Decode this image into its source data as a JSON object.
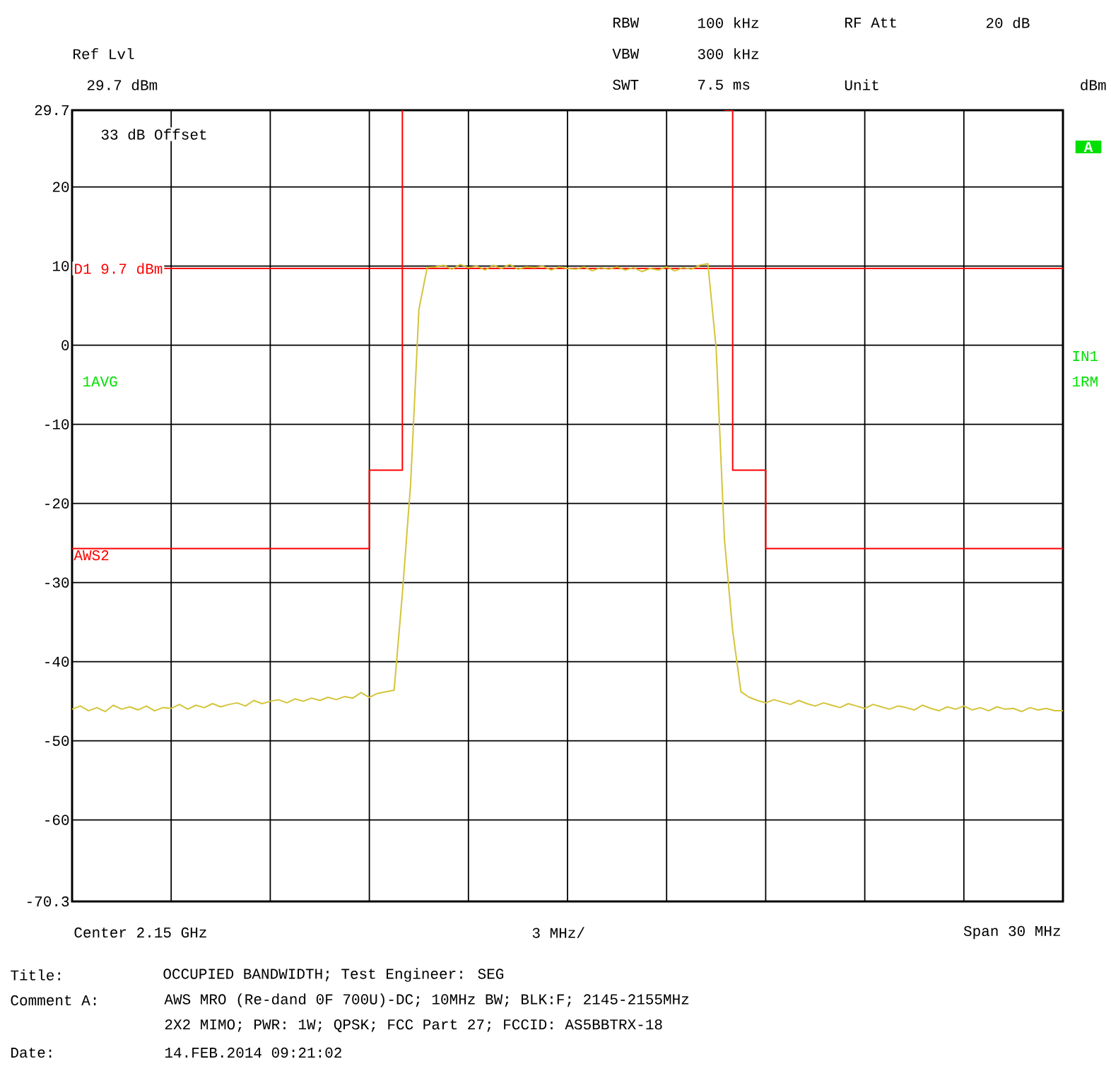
{
  "chart_data": {
    "type": "line",
    "title": "OCCUPIED BANDWIDTH; Test Engineer: SEG",
    "categories": [
      null,
      null,
      null,
      null,
      null,
      null,
      null,
      null,
      null,
      null,
      null,
      null,
      null,
      null,
      null,
      null,
      null,
      null,
      null,
      null,
      null,
      null,
      null,
      null,
      null,
      null,
      null,
      null,
      null,
      null,
      null,
      null,
      null,
      null,
      null,
      null,
      null,
      null,
      null,
      null,
      null,
      null,
      null,
      null,
      null,
      null,
      null,
      null,
      null,
      null,
      null,
      null,
      null,
      null,
      null,
      null,
      null,
      null,
      null,
      null,
      null,
      null,
      null,
      null,
      null,
      null,
      null,
      null,
      null,
      null,
      null,
      null,
      null,
      null,
      null,
      null,
      null,
      null,
      null,
      null,
      null,
      null,
      null,
      null,
      null,
      null,
      null,
      null,
      null,
      null,
      null,
      null,
      null,
      null,
      null,
      null,
      null,
      null,
      null,
      null,
      null,
      null,
      null,
      null,
      null,
      null,
      null,
      null,
      null,
      null,
      null,
      null,
      null,
      null,
      null,
      null,
      null,
      null,
      null,
      null,
      null
    ],
    "ylim": [
      -70.3,
      29.7
    ],
    "yticks": [
      29.7,
      20,
      10,
      0,
      -10,
      -20,
      -30,
      -40,
      -50,
      -60,
      -70.3
    ],
    "grid": true,
    "marker": "none",
    "line_style": "solid",
    "series": [
      {
        "color": "#d4c43a",
        "values": [
          -46.0,
          -45.6,
          -46.2,
          -45.8,
          -46.3,
          -45.5,
          -46.0,
          -45.7,
          -46.1,
          -45.6,
          -46.2,
          -45.8,
          -45.9,
          -45.4,
          -46.0,
          -45.5,
          -45.8,
          -45.3,
          -45.7,
          -45.4,
          -45.2,
          -45.6,
          -44.9,
          -45.3,
          -45.0,
          -44.8,
          -45.2,
          -44.7,
          -45.0,
          -44.6,
          -44.9,
          -44.5,
          -44.8,
          -44.4,
          -44.6,
          -43.9,
          -44.5,
          -44.0,
          -43.8,
          -43.6,
          -31.4,
          -17.5,
          4.5,
          9.8,
          9.9,
          10.1,
          9.6,
          10.2,
          9.8,
          10.0,
          9.5,
          10.1,
          9.7,
          10.2,
          9.6,
          9.9,
          9.8,
          10.0,
          9.5,
          9.9,
          9.7,
          9.6,
          9.9,
          9.4,
          9.8,
          9.6,
          9.9,
          9.5,
          9.8,
          9.3,
          9.7,
          9.5,
          9.9,
          9.4,
          9.8,
          9.6,
          10.1,
          10.3,
          -0.4,
          -24.5,
          -36.1,
          -43.8,
          -44.5,
          -44.9,
          -45.2,
          -44.8,
          -45.1,
          -45.4,
          -44.9,
          -45.3,
          -45.6,
          -45.2,
          -45.5,
          -45.8,
          -45.3,
          -45.6,
          -45.9,
          -45.4,
          -45.7,
          -46.0,
          -45.6,
          -45.8,
          -46.1,
          -45.5,
          -45.9,
          -46.2,
          -45.7,
          -46.0,
          -45.6,
          -46.1,
          -45.8,
          -46.2,
          -45.7,
          -46.0,
          -45.9,
          -46.3,
          -45.8,
          -46.1,
          -45.9,
          -46.2,
          -46.2
        ]
      },
      {
        "name": "AWS2",
        "type": "step",
        "color": "#ff0000",
        "values": [
          -25.7,
          -25.7,
          -25.7,
          -25.7,
          -25.7,
          -25.7,
          -25.7,
          -25.7,
          -25.7,
          -25.7,
          -25.7,
          -25.7,
          -25.7,
          -25.7,
          -25.7,
          -25.7,
          -25.7,
          -25.7,
          -25.7,
          -25.7,
          -25.7,
          -25.7,
          -25.7,
          -25.7,
          -25.7,
          -25.7,
          -25.7,
          -25.7,
          -25.7,
          -25.7,
          -25.7,
          -25.7,
          -25.7,
          -25.7,
          -25.7,
          -25.7,
          -15.8,
          -15.8,
          -15.8,
          -15.8,
          29.7,
          null,
          null,
          null,
          null,
          null,
          null,
          null,
          null,
          null,
          null,
          null,
          null,
          null,
          null,
          null,
          null,
          null,
          null,
          null,
          null,
          null,
          null,
          null,
          null,
          null,
          null,
          null,
          null,
          null,
          null,
          null,
          null,
          null,
          null,
          null,
          null,
          null,
          null,
          29.7,
          -15.8,
          -15.8,
          -15.8,
          -15.8,
          -25.7,
          -25.7,
          -25.7,
          -25.7,
          -25.7,
          -25.7,
          -25.7,
          -25.7,
          -25.7,
          -25.7,
          -25.7,
          -25.7,
          -25.7,
          -25.7,
          -25.7,
          -25.7,
          -25.7,
          -25.7,
          -25.7,
          -25.7,
          -25.7,
          -25.7,
          -25.7,
          -25.7,
          -25.7,
          -25.7,
          -25.7,
          -25.7,
          -25.7,
          -25.7,
          -25.7,
          -25.7,
          -25.7,
          -25.7,
          -25.7,
          -25.7,
          -25.7
        ]
      }
    ],
    "ref_lines": [
      {
        "axis": "y",
        "value": 9.7,
        "label": "D1 9.7 dBm",
        "color": "#ff0000"
      }
    ],
    "annotations": [
      "Ref Lvl",
      "29.7 dBm",
      "RBW",
      "100 kHz",
      "RF Att",
      "20 dB",
      "VBW",
      "300 kHz",
      "SWT",
      "7.5 ms",
      "Unit",
      "dBm",
      "33 dB Offset",
      "1AVG",
      "A",
      "IN1",
      "1RM",
      "Center 2.15 GHz",
      "3 MHz/",
      "Span 30 MHz",
      "Title:",
      "Comment A:",
      "AWS MRO (Re-dand 0F 700U)-DC; 10MHz BW; BLK:F; 2145-2155MHz",
      "2X2 MIMO; PWR: 1W; QPSK; FCC Part 27; FCCID: AS5BBTRX-18",
      "Date:",
      "14.FEB.2014  09:21:02"
    ]
  }
}
